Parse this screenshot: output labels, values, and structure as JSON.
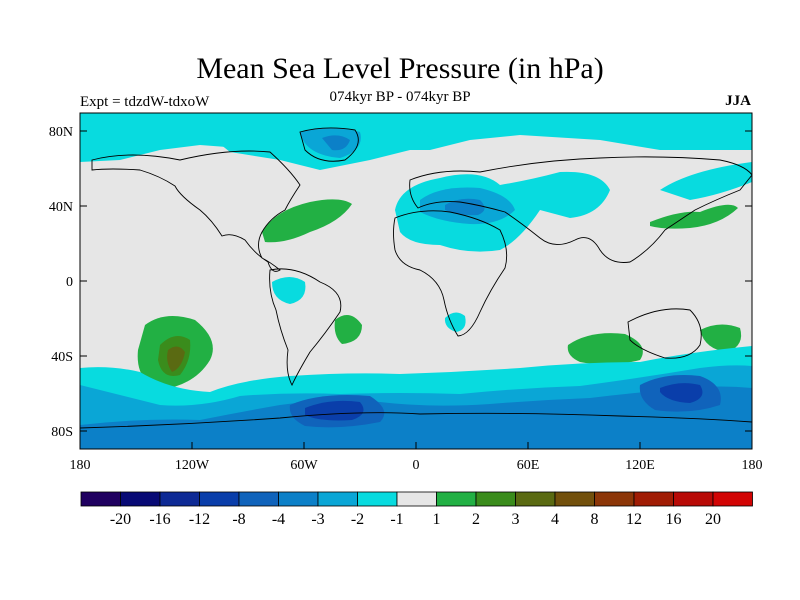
{
  "title": "Mean Sea Level Pressure (in hPa)",
  "subtitle": "074kyr BP - 074kyr BP",
  "experiment": "Expt = tdzdW-tdxoW",
  "season": "JJA",
  "lat_labels": [
    "80N",
    "40N",
    "0",
    "40S",
    "80S"
  ],
  "lon_labels": [
    "180",
    "120W",
    "60W",
    "0",
    "60E",
    "120E",
    "180"
  ],
  "colorbar": {
    "colors": [
      "#200060",
      "#080a75",
      "#0e2a95",
      "#0a3eaa",
      "#1063bb",
      "#0c80c8",
      "#0aa6d6",
      "#08dbdf",
      "#e6e6e6",
      "#22b044",
      "#3a8c1c",
      "#5a6a12",
      "#72500c",
      "#8c3608",
      "#a01c04",
      "#b80a06",
      "#d20404"
    ],
    "labels": [
      "-20",
      "-16",
      "-12",
      "-8",
      "-4",
      "-3",
      "-2",
      "-1",
      "1",
      "2",
      "3",
      "4",
      "8",
      "12",
      "16",
      "20"
    ]
  },
  "colors": {
    "land_neutral": "#e6e6e6",
    "neg1": "#08dbdf",
    "neg2": "#0aa6d6",
    "neg3": "#0c80c8",
    "neg4": "#1063bb",
    "neg8": "#0a3eaa",
    "pos1": "#22b044",
    "pos2": "#3a8c1c",
    "pos3": "#5a6a12"
  }
}
